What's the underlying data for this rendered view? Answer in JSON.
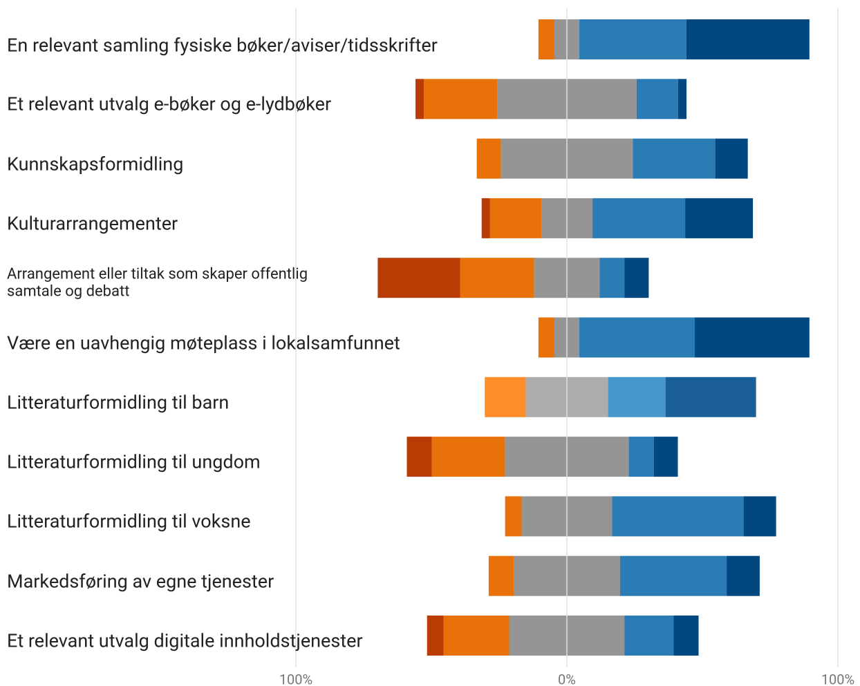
{
  "chart_data": {
    "type": "diverging_bar",
    "categories": [
      "En relevant samling fysiske bøker/aviser/tidsskrifter",
      "Et relevant utvalg e-bøker og e-lydbøker",
      "Kunnskapsformidling",
      "Kulturarrangementer",
      "Arrangement eller tiltak som skaper offentlig samtale og debatt",
      "Være en uavhengig møteplass i lokalsamfunnet",
      "Litteraturformidling til barn",
      "Litteraturformidling til ungdom",
      "Litteraturformidling til voksne",
      "Markedsføring av egne tjenester",
      "Et relevant utvalg digitale innholdstjenester"
    ],
    "series": [
      {
        "color": "#b93c04",
        "highlight_color": "#b93c04",
        "values": [
          0,
          3.1,
          0,
          3.1,
          30.4,
          0,
          0,
          9.2,
          0,
          0,
          6.1
        ]
      },
      {
        "color": "#e8710a",
        "highlight_color": "#fe8c28",
        "values": [
          5.9,
          27,
          8.9,
          18.9,
          27.3,
          5.9,
          15.1,
          27,
          6.1,
          9.2,
          24.2
        ]
      },
      {
        "color": "#959595",
        "highlight_color": "#adadad",
        "values": [
          9.2,
          51.5,
          48.7,
          18.9,
          24.2,
          9.2,
          30.4,
          45.7,
          33.4,
          39.3,
          42.6
        ]
      },
      {
        "color": "#2b7bb4",
        "highlight_color": "#4496cc",
        "values": [
          39.5,
          15.3,
          30.4,
          34.2,
          9.2,
          42.6,
          21.2,
          9.2,
          48.5,
          39.3,
          18.1
        ]
      },
      {
        "color": "#00487f",
        "highlight_color": "#1a5f98",
        "values": [
          45.4,
          3.1,
          12,
          25,
          8.9,
          42.3,
          33.4,
          8.9,
          12,
          12.2,
          9.2
        ]
      }
    ],
    "highlight_index": 6,
    "xlim": [
      -100,
      100
    ],
    "xticks": [
      {
        "value": -100,
        "label": "100%"
      },
      {
        "value": 0,
        "label": "0%"
      },
      {
        "value": 100,
        "label": "100%"
      }
    ],
    "grid": true
  }
}
